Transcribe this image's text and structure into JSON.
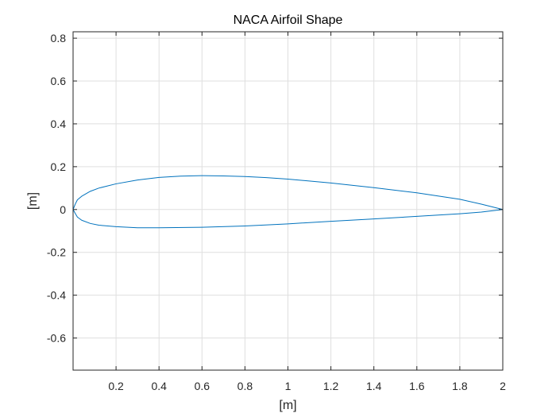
{
  "chart_data": {
    "type": "line",
    "title": "NACA Airfoil Shape",
    "xlabel": "[m]",
    "ylabel": "[m]",
    "xlim": [
      0,
      2
    ],
    "ylim": [
      -0.75,
      0.83
    ],
    "grid": true,
    "legend": "none",
    "x_ticks": [
      0.2,
      0.4,
      0.6,
      0.8,
      1,
      1.2,
      1.4,
      1.6,
      1.8,
      2
    ],
    "x_tick_labels": [
      "0.2",
      "0.4",
      "0.6",
      "0.8",
      "1",
      "1.2",
      "1.4",
      "1.6",
      "1.8",
      "2"
    ],
    "y_ticks": [
      -0.6,
      -0.4,
      -0.2,
      0,
      0.2,
      0.4,
      0.6,
      0.8
    ],
    "y_tick_labels": [
      "-0.6",
      "-0.4",
      "-0.2",
      "0",
      "0.2",
      "0.4",
      "0.6",
      "0.8"
    ],
    "colors": {
      "line": "#0072bd",
      "grid": "#dfdfdf",
      "axis": "#262626"
    },
    "series": [
      {
        "x": [
          0,
          0.01,
          0.02,
          0.04,
          0.08,
          0.12,
          0.2,
          0.3,
          0.4,
          0.5,
          0.6,
          0.7,
          0.8,
          0.9,
          1.0,
          1.2,
          1.4,
          1.6,
          1.8,
          1.9,
          2.0,
          1.9,
          1.8,
          1.6,
          1.4,
          1.2,
          1.0,
          0.8,
          0.6,
          0.4,
          0.3,
          0.2,
          0.12,
          0.08,
          0.04,
          0.02,
          0.01,
          0
        ],
        "y": [
          0,
          0.025,
          0.045,
          0.062,
          0.085,
          0.1,
          0.12,
          0.138,
          0.15,
          0.156,
          0.158,
          0.157,
          0.154,
          0.149,
          0.142,
          0.124,
          0.102,
          0.078,
          0.048,
          0.025,
          0,
          -0.012,
          -0.02,
          -0.032,
          -0.044,
          -0.055,
          -0.067,
          -0.077,
          -0.083,
          -0.085,
          -0.085,
          -0.08,
          -0.073,
          -0.065,
          -0.05,
          -0.035,
          -0.018,
          0
        ]
      }
    ]
  }
}
